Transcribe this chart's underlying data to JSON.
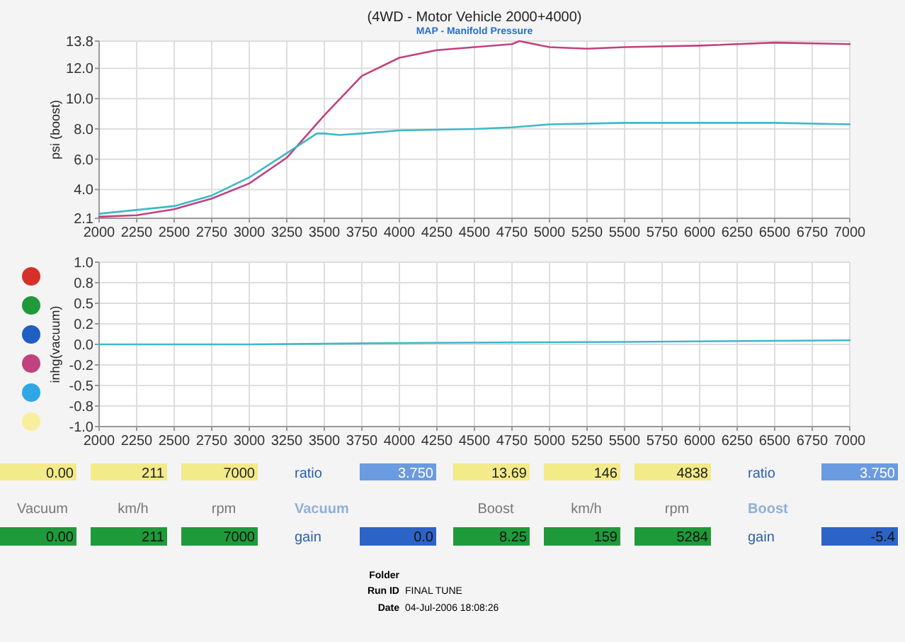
{
  "chart_data": [
    {
      "type": "line",
      "title": "(4WD - Motor Vehicle 2000+4000)",
      "subtitle": "MAP - Manifold Pressure",
      "ylabel": "psi (boost)",
      "xlim": [
        2000,
        7000
      ],
      "xticks": [
        2000,
        2250,
        2500,
        2750,
        3000,
        3250,
        3500,
        3750,
        4000,
        4250,
        4500,
        4750,
        5000,
        5250,
        5500,
        5750,
        6000,
        6250,
        6500,
        6750,
        7000
      ],
      "ylim": [
        2.1,
        13.8
      ],
      "yticks": [
        2.1,
        {
          "value": 4,
          "label": "4.0"
        },
        {
          "value": 6,
          "label": "6.0"
        },
        {
          "value": 8,
          "label": "8.0"
        },
        {
          "value": 10,
          "label": "10.0"
        },
        {
          "value": 12,
          "label": "12.0"
        },
        13.8
      ],
      "grid": true,
      "series": [
        {
          "color": "#c0427e",
          "x": [
            2000,
            2250,
            2500,
            2750,
            3000,
            3250,
            3500,
            3750,
            4000,
            4250,
            4500,
            4750,
            4800,
            5000,
            5250,
            5500,
            6000,
            6500,
            7000
          ],
          "values": [
            2.2,
            2.3,
            2.7,
            3.4,
            4.4,
            6.1,
            8.9,
            11.5,
            12.7,
            13.2,
            13.4,
            13.6,
            13.8,
            13.4,
            13.3,
            13.4,
            13.5,
            13.7,
            13.6
          ]
        },
        {
          "color": "#3fb8c9",
          "x": [
            2000,
            2500,
            2750,
            3000,
            3250,
            3450,
            3500,
            3600,
            3750,
            4000,
            4500,
            4750,
            5000,
            5500,
            6000,
            6500,
            7000
          ],
          "values": [
            2.4,
            2.9,
            3.6,
            4.8,
            6.4,
            7.7,
            7.7,
            7.6,
            7.7,
            7.9,
            8.0,
            8.1,
            8.3,
            8.4,
            8.4,
            8.4,
            8.3
          ]
        }
      ]
    },
    {
      "type": "line",
      "ylabel": "inhg(vacuum)",
      "xlim": [
        2000,
        7000
      ],
      "xticks": [
        2000,
        2250,
        2500,
        2750,
        3000,
        3250,
        3500,
        3750,
        4000,
        4250,
        4500,
        4750,
        5000,
        5250,
        5500,
        5750,
        6000,
        6250,
        6500,
        6750,
        7000
      ],
      "ylim": [
        -1,
        1
      ],
      "yticks": [
        {
          "value": -1,
          "label": "-1.0"
        },
        {
          "value": -0.75,
          "label": "-0.8"
        },
        -0.5,
        {
          "value": -0.25,
          "label": "-0.2"
        },
        {
          "value": 0,
          "label": "0.0"
        },
        {
          "value": 0.25,
          "label": "0.2"
        },
        0.5,
        {
          "value": 0.75,
          "label": "0.8"
        },
        {
          "value": 1,
          "label": "1.0"
        }
      ],
      "grid": true,
      "series": [
        {
          "color": "#3fb8c9",
          "x": [
            2000,
            3000,
            4250,
            5500,
            7000
          ],
          "values": [
            0,
            0,
            0.02,
            0.03,
            0.05
          ]
        }
      ]
    },
    {
      "type": "other",
      "annotations": [
        "0.00",
        "211",
        "7000",
        "ratio",
        "3.750",
        "13.69",
        "146",
        "4838",
        "ratio",
        "3.750",
        "Vacuum",
        "km/h",
        "rpm",
        "Vacuum",
        "Boost",
        "km/h",
        "rpm",
        "Boost",
        "0.00",
        "211",
        "7000",
        "gain",
        "0.0",
        "8.25",
        "159",
        "5284",
        "gain",
        "-5.4",
        "Folder",
        "Run ID",
        "FINAL TUNE",
        "Date",
        "04-Jul-2006  18:08:26"
      ]
    }
  ]
}
